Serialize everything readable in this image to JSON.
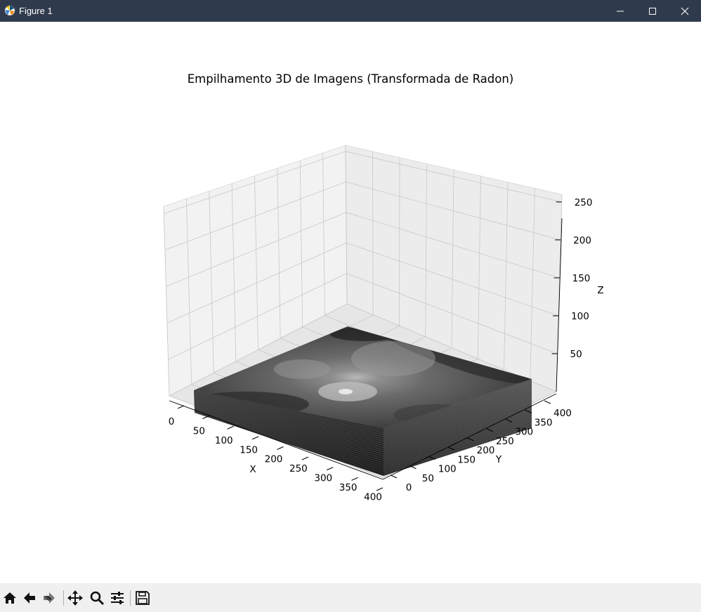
{
  "window": {
    "title": "Figure 1",
    "controls": [
      "minimize-icon",
      "maximize-icon",
      "close-icon"
    ]
  },
  "figure": {
    "title": "Empilhamento 3D de Imagens (Transformada de Radon)",
    "xlabel": "X",
    "ylabel": "Y",
    "zlabel": "Z",
    "x_ticks": [
      "0",
      "50",
      "100",
      "150",
      "200",
      "250",
      "300",
      "350",
      "400"
    ],
    "y_ticks": [
      "0",
      "50",
      "100",
      "150",
      "200",
      "250",
      "300",
      "350",
      "400"
    ],
    "z_ticks": [
      "50",
      "100",
      "150",
      "200",
      "250"
    ]
  },
  "chart_data": {
    "type": "surface",
    "title": "Empilhamento 3D de Imagens (Transformada de Radon)",
    "xlabel": "X",
    "ylabel": "Y",
    "zlabel": "Z",
    "xlim": [
      0,
      400
    ],
    "ylim": [
      0,
      400
    ],
    "zlim": [
      0,
      260
    ],
    "x_ticks": [
      0,
      50,
      100,
      150,
      200,
      250,
      300,
      350,
      400
    ],
    "y_ticks": [
      0,
      50,
      100,
      150,
      200,
      250,
      300,
      350,
      400
    ],
    "z_ticks": [
      50,
      100,
      150,
      200,
      250
    ],
    "colormap": "gray",
    "grid": true,
    "description_of_data": "stack of grayscale Radon-transform image slices rendered as surfaces near the bottom of the z range"
  },
  "toolbar": {
    "buttons": [
      {
        "name": "home-icon"
      },
      {
        "name": "back-icon"
      },
      {
        "name": "forward-icon"
      },
      {
        "name": "pan-icon"
      },
      {
        "name": "zoom-icon"
      },
      {
        "name": "configure-subplots-icon"
      },
      {
        "name": "save-icon"
      }
    ]
  },
  "colors": {
    "titlebar": "#2f3b4c",
    "toolbar": "#f0f0f0",
    "pane": "#f2f2f2",
    "grid": "#c8c8c8"
  }
}
